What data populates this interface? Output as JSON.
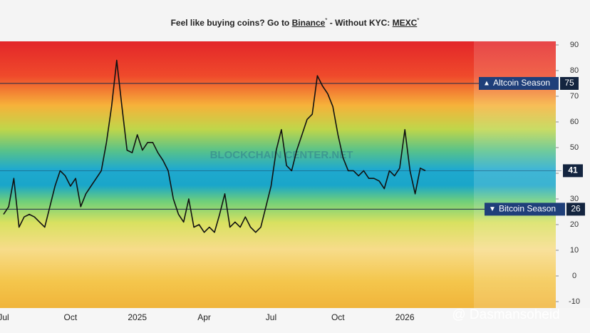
{
  "header": [
    "Feel like buying coins? Go to ",
    "Binance",
    "*",
    " - Without KYC: ",
    "MEXC",
    "*"
  ],
  "chart_data": {
    "type": "line",
    "color": "#111111",
    "categories": [
      "Jul",
      null,
      null,
      null,
      null,
      null,
      null,
      null,
      null,
      null,
      null,
      null,
      null,
      "Oct",
      null,
      null,
      null,
      null,
      null,
      null,
      null,
      null,
      null,
      null,
      null,
      null,
      "2025",
      null,
      null,
      null,
      null,
      null,
      null,
      null,
      null,
      null,
      null,
      null,
      null,
      "Apr",
      null,
      null,
      null,
      null,
      null,
      null,
      null,
      null,
      null,
      null,
      null,
      null,
      "Jul",
      null,
      null,
      null,
      null,
      null,
      null,
      null,
      null,
      null,
      null,
      null,
      null,
      "Oct",
      null,
      null,
      null,
      null,
      null,
      null,
      null,
      null,
      null,
      null,
      null,
      null,
      "2026",
      null,
      null,
      null,
      null
    ],
    "values": [
      24,
      27,
      38,
      19,
      23,
      24,
      23,
      21,
      19,
      27,
      35,
      41,
      39,
      35,
      38,
      27,
      32,
      35,
      38,
      41,
      52,
      66,
      84,
      66,
      49,
      48,
      55,
      49,
      52,
      52,
      48,
      45,
      41,
      30,
      24,
      21,
      30,
      19,
      20,
      17,
      19,
      17,
      24,
      32,
      19,
      21,
      19,
      23,
      19,
      17,
      19,
      27,
      35,
      49,
      57,
      43,
      41,
      49,
      55,
      61,
      63,
      78,
      74,
      71,
      66,
      55,
      46,
      41,
      41,
      39,
      41,
      38,
      38,
      37,
      34,
      41,
      39,
      42,
      57,
      41,
      32,
      42,
      41
    ],
    "ylim": [
      -10,
      90
    ],
    "yticks": [
      90,
      80,
      70,
      60,
      50,
      40,
      30,
      20,
      10,
      0,
      -10
    ],
    "reference_lines": [
      {
        "label": "Altcoin Season",
        "value": 75,
        "color": "#1f3f7a"
      },
      {
        "label": "Bitcoin Season",
        "value": 26,
        "color": "#1f3f7a"
      }
    ],
    "current_value": 41,
    "watermark": "BLOCKCHAIN CENTER.NET"
  },
  "overlay": "@ Dasmansoheid"
}
